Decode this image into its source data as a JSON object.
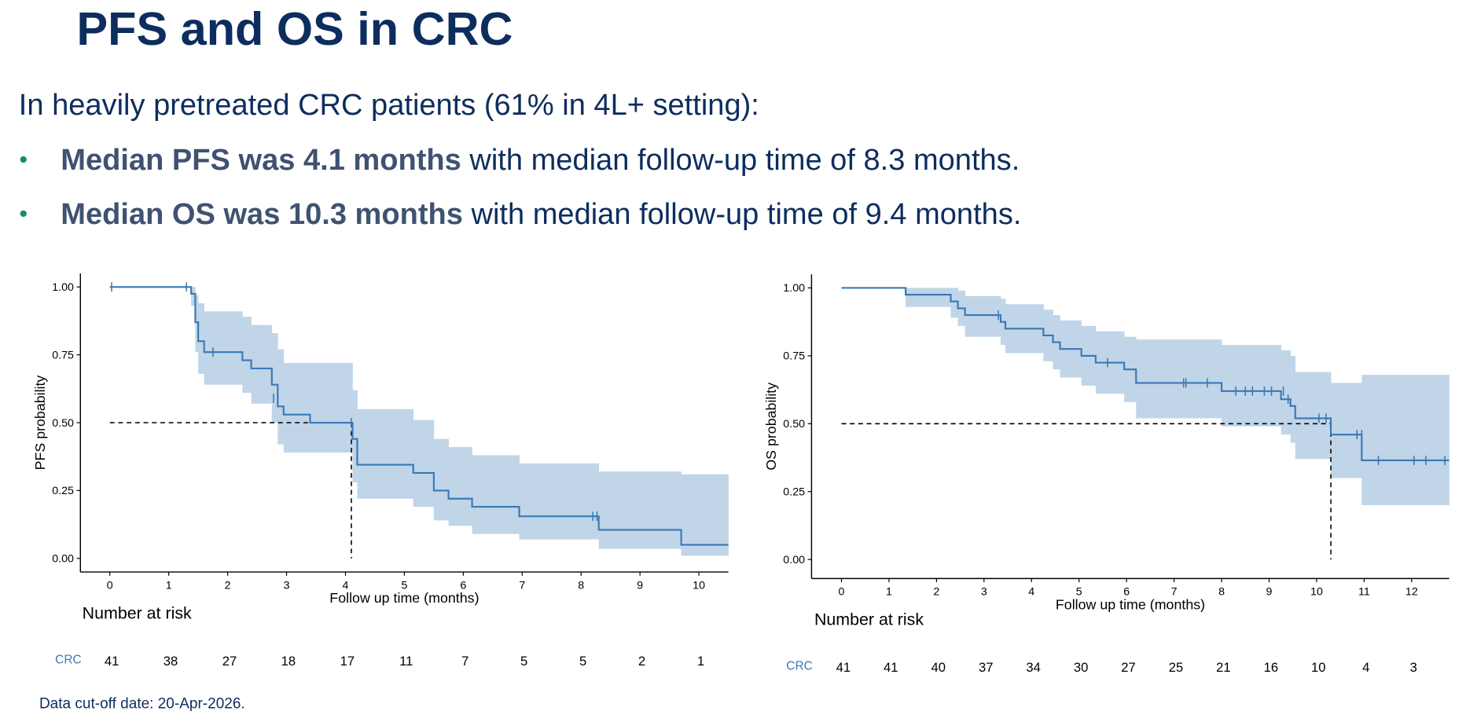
{
  "title": "PFS and OS in CRC",
  "intro": "In heavily pretreated CRC patients (61% in 4L+ setting):",
  "bullets": [
    {
      "bold": "Median PFS was 4.1 months",
      "rest": " with median follow-up time of 8.3 months."
    },
    {
      "bold": "Median OS was 10.3 months",
      "rest": " with median follow-up time of 9.4 months."
    }
  ],
  "footnote": "Data cut-off date: 20-Apr-2026.",
  "chart_data": [
    {
      "type": "kaplan-meier",
      "ylabel": "PFS probability",
      "xlabel": "Follow up time (months)",
      "color": "#3a78b5",
      "band_color": "#c0d5e8",
      "x": [
        0,
        1.38,
        1.45,
        1.5,
        1.6,
        2.25,
        2.4,
        2.75,
        2.85,
        2.95,
        3.4,
        4.12,
        4.2,
        5.15,
        5.5,
        5.75,
        6.15,
        6.95,
        8.3,
        9.7
      ],
      "values": [
        1,
        0.975,
        0.87,
        0.8,
        0.76,
        0.73,
        0.7,
        0.64,
        0.56,
        0.53,
        0.5,
        0.44,
        0.345,
        0.315,
        0.25,
        0.22,
        0.19,
        0.155,
        0.105,
        0.05
      ],
      "lower": [
        1,
        0.93,
        0.76,
        0.68,
        0.64,
        0.61,
        0.57,
        0.5,
        0.42,
        0.39,
        0.39,
        0.28,
        0.22,
        0.19,
        0.14,
        0.12,
        0.09,
        0.07,
        0.035,
        0.01
      ],
      "upper": [
        1,
        1,
        0.97,
        0.94,
        0.91,
        0.89,
        0.86,
        0.83,
        0.77,
        0.72,
        0.72,
        0.62,
        0.55,
        0.51,
        0.44,
        0.41,
        0.38,
        0.35,
        0.32,
        0.31
      ],
      "censor_x": [
        0.03,
        1.3,
        1.75,
        2.78,
        4.1,
        8.2,
        8.27
      ],
      "censor_y": [
        1,
        1,
        0.76,
        0.59,
        0.5,
        0.155,
        0.155
      ],
      "median_x": 4.1,
      "median_y": 0.5,
      "xlim": [
        -0.5,
        10.5
      ],
      "ylim": [
        -0.05,
        1.05
      ],
      "xticks": [
        0,
        1,
        2,
        3,
        4,
        5,
        6,
        7,
        8,
        9,
        10
      ],
      "yticks": [
        {
          "value": 0,
          "label": "0.00"
        },
        {
          "value": 0.25,
          "label": "0.25"
        },
        {
          "value": 0.5,
          "label": "0.50"
        },
        {
          "value": 0.75,
          "label": "0.75"
        },
        {
          "value": 1,
          "label": "1.00"
        }
      ],
      "risk_title": "Number at risk",
      "risk_group": "CRC",
      "risk_counts": [
        41,
        38,
        27,
        18,
        17,
        11,
        7,
        5,
        5,
        2,
        1
      ]
    },
    {
      "type": "kaplan-meier",
      "ylabel": "OS probability",
      "xlabel": "Follow up time (months)",
      "color": "#3a78b5",
      "band_color": "#c0d5e8",
      "x": [
        0,
        1.35,
        2.3,
        2.45,
        2.6,
        3.35,
        3.45,
        4.25,
        4.45,
        4.6,
        5.05,
        5.35,
        5.95,
        6.2,
        8.0,
        9.25,
        9.45,
        9.55,
        10.3,
        10.95
      ],
      "values": [
        1,
        0.975,
        0.95,
        0.925,
        0.9,
        0.875,
        0.85,
        0.825,
        0.8,
        0.775,
        0.75,
        0.725,
        0.7,
        0.65,
        0.62,
        0.59,
        0.565,
        0.52,
        0.46,
        0.365
      ],
      "lower": [
        1,
        0.93,
        0.89,
        0.86,
        0.82,
        0.79,
        0.76,
        0.73,
        0.7,
        0.67,
        0.64,
        0.61,
        0.58,
        0.52,
        0.49,
        0.46,
        0.43,
        0.37,
        0.3,
        0.2
      ],
      "upper": [
        1,
        1,
        1,
        0.99,
        0.97,
        0.96,
        0.94,
        0.92,
        0.9,
        0.88,
        0.86,
        0.84,
        0.82,
        0.81,
        0.79,
        0.77,
        0.75,
        0.69,
        0.65,
        0.68
      ],
      "censor_x": [
        3.3,
        5.6,
        7.2,
        7.25,
        7.7,
        8.3,
        8.5,
        8.65,
        8.9,
        9.05,
        9.3,
        9.4,
        10.05,
        10.2,
        10.85,
        10.95,
        11.3,
        12.05,
        12.3,
        12.7
      ],
      "censor_y": [
        0.9,
        0.725,
        0.65,
        0.65,
        0.65,
        0.62,
        0.62,
        0.62,
        0.62,
        0.62,
        0.62,
        0.59,
        0.52,
        0.52,
        0.46,
        0.46,
        0.365,
        0.365,
        0.365,
        0.365
      ],
      "median_x": 10.3,
      "median_y": 0.5,
      "xlim": [
        -0.63,
        12.79
      ],
      "ylim": [
        -0.07,
        1.05
      ],
      "xticks": [
        0,
        1,
        2,
        3,
        4,
        5,
        6,
        7,
        8,
        9,
        10,
        11,
        12
      ],
      "yticks": [
        {
          "value": 0,
          "label": "0.00"
        },
        {
          "value": 0.25,
          "label": "0.25"
        },
        {
          "value": 0.5,
          "label": "0.50"
        },
        {
          "value": 0.75,
          "label": "0.75"
        },
        {
          "value": 1,
          "label": "1.00"
        }
      ],
      "risk_title": "Number at risk",
      "risk_group": "CRC",
      "risk_counts": [
        41,
        41,
        40,
        37,
        34,
        30,
        27,
        25,
        21,
        16,
        10,
        4,
        3
      ]
    }
  ]
}
